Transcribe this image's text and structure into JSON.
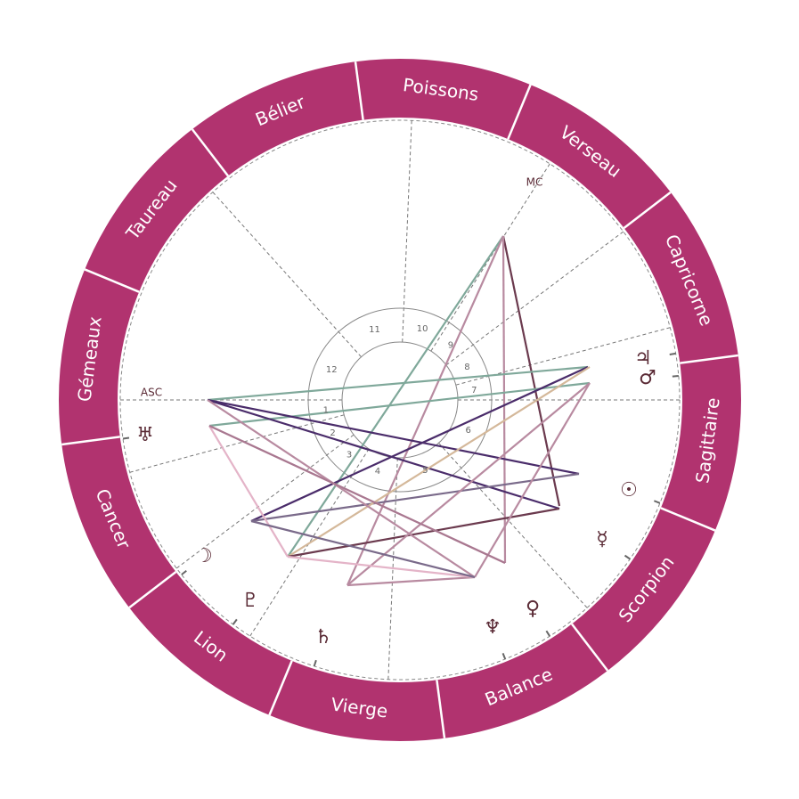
{
  "signs": [
    "Poissons",
    "Verseau",
    "Capricorne",
    "Sagittaire",
    "Scorpion",
    "Balance",
    "Vierge",
    "Lion",
    "Cancer",
    "Gémeaux",
    "Taureau",
    "Bélier"
  ],
  "houses": [
    "1",
    "2",
    "3",
    "4",
    "5",
    "6",
    "7",
    "8",
    "9",
    "10",
    "11",
    "12"
  ],
  "angles": {
    "asc": "ASC",
    "mc": "MC"
  },
  "planets": [
    "♃",
    "♂",
    "☉",
    "☿",
    "♀",
    "♆",
    "♄",
    "♇",
    "☽",
    "♅"
  ]
}
